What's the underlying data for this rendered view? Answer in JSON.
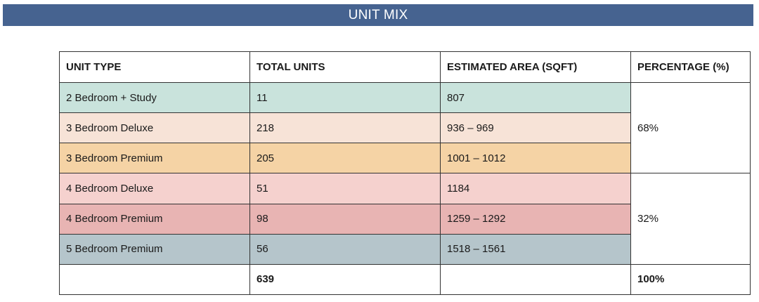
{
  "title": "UNIT MIX",
  "colors": {
    "banner": "#466390",
    "row_2br_study": "#c9e3dc",
    "row_3br_deluxe": "#f7e3d7",
    "row_3br_premium": "#f5d3a5",
    "row_4br_deluxe": "#f5d1ce",
    "row_4br_premium": "#e8b4b3",
    "row_5br_premium": "#b5c5cb"
  },
  "table": {
    "headers": [
      "UNIT TYPE",
      "TOTAL UNITS",
      "ESTIMATED AREA (SQFT)",
      "PERCENTAGE (%)"
    ],
    "rows": [
      {
        "unit_type": "2 Bedroom + Study",
        "total_units": "11",
        "area": "807"
      },
      {
        "unit_type": "3 Bedroom Deluxe",
        "total_units": "218",
        "area": "936 – 969"
      },
      {
        "unit_type": "3 Bedroom Premium",
        "total_units": "205",
        "area": "1001 – 1012"
      },
      {
        "unit_type": "4 Bedroom Deluxe",
        "total_units": "51",
        "area": "1184"
      },
      {
        "unit_type": "4 Bedroom Premium",
        "total_units": "98",
        "area": "1259 – 1292"
      },
      {
        "unit_type": "5 Bedroom Premium",
        "total_units": "56",
        "area": "1518 – 1561"
      }
    ],
    "percentages": [
      "68%",
      "32%"
    ],
    "total": {
      "units": "639",
      "percentage": "100%"
    }
  }
}
